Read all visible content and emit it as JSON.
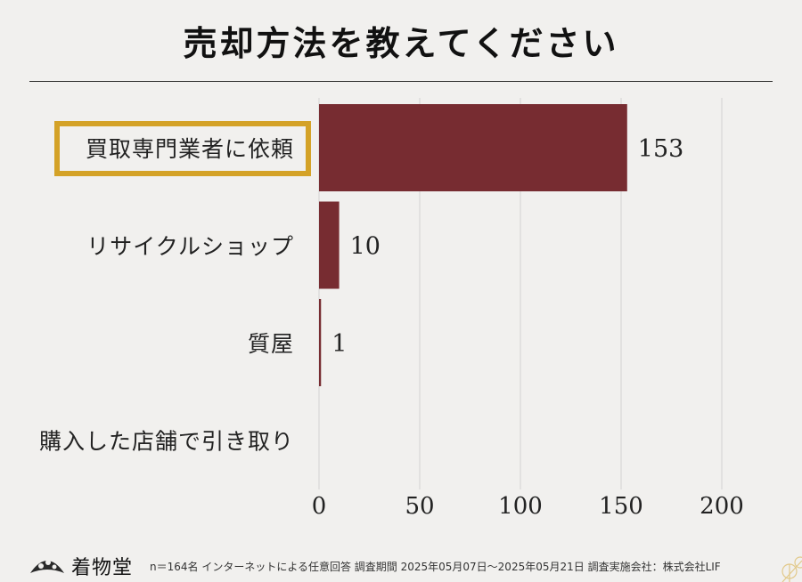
{
  "title": "売却方法を教えてください",
  "chart_data": {
    "type": "bar",
    "orientation": "horizontal",
    "categories": [
      "買取専門業者に依頼",
      "リサイクルショップ",
      "質屋",
      "購入した店舗で引き取り"
    ],
    "values": [
      153,
      10,
      1,
      0
    ],
    "value_labels": [
      "153",
      "10",
      "1",
      ""
    ],
    "highlighted_category": "買取専門業者に依頼",
    "xlim": [
      0,
      200
    ],
    "xticks": [
      0,
      50,
      100,
      150,
      200
    ],
    "xtick_labels": [
      "0",
      "50",
      "100",
      "150",
      "200"
    ],
    "grid": true,
    "colors": {
      "bar": "#772c31",
      "highlight_border": "#d4a227",
      "grid": "#d2d2d2"
    }
  },
  "footer": {
    "brand": "着物堂",
    "note": "n＝164名 インターネットによる任意回答 調査期間 2025年05月07日～2025年05月21日 調査実施会社：株式会社LIF"
  }
}
